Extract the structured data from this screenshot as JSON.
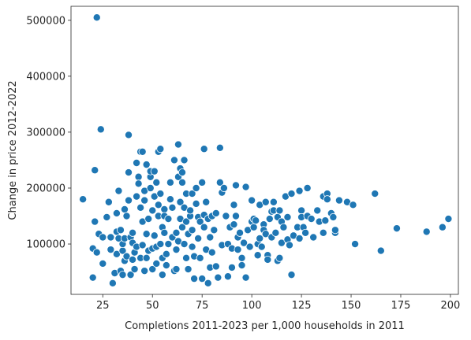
{
  "chart_data": {
    "type": "scatter",
    "title": "",
    "xlabel": "Completions 2011-2023 per 1,000 households in 2011",
    "ylabel": "Change in price 2012-2022",
    "xlim": [
      9,
      204
    ],
    "ylim": [
      10000,
      525000
    ],
    "x_ticks": [
      25,
      50,
      75,
      100,
      125,
      150,
      175,
      200
    ],
    "y_ticks": [
      100000,
      200000,
      300000,
      400000,
      500000
    ],
    "x_tick_labels": [
      "25",
      "50",
      "75",
      "100",
      "125",
      "150",
      "175",
      "200"
    ],
    "y_tick_labels": [
      "100000",
      "200000",
      "300000",
      "400000",
      "500000"
    ],
    "grid": false,
    "legend": "none",
    "color": "#1f77b4",
    "points": [
      [
        15,
        180000
      ],
      [
        20,
        92000
      ],
      [
        20,
        40000
      ],
      [
        21,
        140000
      ],
      [
        21,
        232000
      ],
      [
        22,
        505000
      ],
      [
        22,
        85000
      ],
      [
        23,
        118000
      ],
      [
        24,
        305000
      ],
      [
        25,
        65000
      ],
      [
        25,
        112000
      ],
      [
        27,
        148000
      ],
      [
        28,
        175000
      ],
      [
        29,
        112000
      ],
      [
        29,
        90000
      ],
      [
        30,
        30000
      ],
      [
        31,
        48000
      ],
      [
        32,
        122000
      ],
      [
        32,
        155000
      ],
      [
        32,
        82000
      ],
      [
        33,
        195000
      ],
      [
        33,
        110000
      ],
      [
        34,
        52000
      ],
      [
        34,
        125000
      ],
      [
        35,
        45000
      ],
      [
        35,
        88000
      ],
      [
        35,
        100000
      ],
      [
        36,
        70000
      ],
      [
        36,
        162000
      ],
      [
        36,
        110000
      ],
      [
        37,
        150000
      ],
      [
        37,
        78000
      ],
      [
        38,
        228000
      ],
      [
        38,
        295000
      ],
      [
        38,
        178000
      ],
      [
        39,
        45000
      ],
      [
        39,
        112000
      ],
      [
        40,
        72000
      ],
      [
        40,
        102000
      ],
      [
        40,
        120000
      ],
      [
        41,
        85000
      ],
      [
        41,
        55000
      ],
      [
        42,
        245000
      ],
      [
        42,
        185000
      ],
      [
        42,
        95000
      ],
      [
        43,
        220000
      ],
      [
        43,
        208000
      ],
      [
        44,
        265000
      ],
      [
        44,
        165000
      ],
      [
        44,
        75000
      ],
      [
        45,
        140000
      ],
      [
        45,
        265000
      ],
      [
        45,
        98000
      ],
      [
        46,
        52000
      ],
      [
        46,
        195000
      ],
      [
        46,
        178000
      ],
      [
        47,
        118000
      ],
      [
        47,
        242000
      ],
      [
        47,
        75000
      ],
      [
        48,
        145000
      ],
      [
        48,
        88000
      ],
      [
        49,
        220000
      ],
      [
        49,
        200000
      ],
      [
        49,
        230000
      ],
      [
        50,
        92000
      ],
      [
        50,
        160000
      ],
      [
        50,
        55000
      ],
      [
        51,
        230000
      ],
      [
        51,
        185000
      ],
      [
        51,
        115000
      ],
      [
        52,
        210000
      ],
      [
        52,
        95000
      ],
      [
        52,
        65000
      ],
      [
        53,
        170000
      ],
      [
        53,
        265000
      ],
      [
        53,
        150000
      ],
      [
        54,
        190000
      ],
      [
        54,
        270000
      ],
      [
        54,
        100000
      ],
      [
        55,
        45000
      ],
      [
        55,
        75000
      ],
      [
        55,
        130000
      ],
      [
        56,
        162000
      ],
      [
        56,
        150000
      ],
      [
        56,
        120000
      ],
      [
        57,
        62000
      ],
      [
        57,
        82000
      ],
      [
        58,
        100000
      ],
      [
        58,
        145000
      ],
      [
        59,
        210000
      ],
      [
        59,
        180000
      ],
      [
        60,
        112000
      ],
      [
        60,
        165000
      ],
      [
        61,
        52000
      ],
      [
        61,
        250000
      ],
      [
        62,
        90000
      ],
      [
        62,
        120000
      ],
      [
        62,
        55000
      ],
      [
        63,
        278000
      ],
      [
        63,
        220000
      ],
      [
        63,
        105000
      ],
      [
        64,
        235000
      ],
      [
        64,
        175000
      ],
      [
        64,
        145000
      ],
      [
        65,
        228000
      ],
      [
        65,
        130000
      ],
      [
        65,
        210000
      ],
      [
        66,
        165000
      ],
      [
        66,
        250000
      ],
      [
        66,
        100000
      ],
      [
        67,
        75000
      ],
      [
        67,
        140000
      ],
      [
        67,
        190000
      ],
      [
        68,
        118000
      ],
      [
        68,
        55000
      ],
      [
        69,
        150000
      ],
      [
        69,
        160000
      ],
      [
        70,
        190000
      ],
      [
        70,
        95000
      ],
      [
        70,
        125000
      ],
      [
        71,
        78000
      ],
      [
        71,
        38000
      ],
      [
        72,
        200000
      ],
      [
        72,
        172000
      ],
      [
        73,
        148000
      ],
      [
        73,
        110000
      ],
      [
        74,
        75000
      ],
      [
        74,
        140000
      ],
      [
        75,
        38000
      ],
      [
        75,
        210000
      ],
      [
        76,
        152000
      ],
      [
        76,
        130000
      ],
      [
        76,
        270000
      ],
      [
        77,
        90000
      ],
      [
        77,
        175000
      ],
      [
        78,
        145000
      ],
      [
        78,
        30000
      ],
      [
        79,
        112000
      ],
      [
        79,
        58000
      ],
      [
        80,
        150000
      ],
      [
        80,
        85000
      ],
      [
        81,
        125000
      ],
      [
        82,
        155000
      ],
      [
        82,
        60000
      ],
      [
        83,
        40000
      ],
      [
        84,
        210000
      ],
      [
        84,
        272000
      ],
      [
        85,
        192000
      ],
      [
        85,
        98000
      ],
      [
        86,
        200000
      ],
      [
        87,
        150000
      ],
      [
        88,
        42000
      ],
      [
        88,
        100000
      ],
      [
        89,
        130000
      ],
      [
        90,
        58000
      ],
      [
        90,
        92000
      ],
      [
        91,
        170000
      ],
      [
        91,
        135000
      ],
      [
        92,
        150000
      ],
      [
        92,
        205000
      ],
      [
        93,
        112000
      ],
      [
        93,
        90000
      ],
      [
        94,
        120000
      ],
      [
        95,
        75000
      ],
      [
        95,
        62000
      ],
      [
        96,
        102000
      ],
      [
        97,
        40000
      ],
      [
        97,
        202000
      ],
      [
        98,
        125000
      ],
      [
        99,
        95000
      ],
      [
        100,
        140000
      ],
      [
        100,
        178000
      ],
      [
        101,
        145000
      ],
      [
        101,
        130000
      ],
      [
        102,
        142000
      ],
      [
        103,
        80000
      ],
      [
        103,
        100000
      ],
      [
        104,
        110000
      ],
      [
        104,
        170000
      ],
      [
        105,
        95000
      ],
      [
        106,
        135000
      ],
      [
        106,
        125000
      ],
      [
        107,
        175000
      ],
      [
        107,
        118000
      ],
      [
        108,
        80000
      ],
      [
        108,
        72000
      ],
      [
        109,
        145000
      ],
      [
        110,
        112000
      ],
      [
        110,
        158000
      ],
      [
        111,
        160000
      ],
      [
        111,
        175000
      ],
      [
        112,
        120000
      ],
      [
        113,
        70000
      ],
      [
        113,
        148000
      ],
      [
        114,
        160000
      ],
      [
        114,
        75000
      ],
      [
        115,
        102000
      ],
      [
        115,
        140000
      ],
      [
        116,
        130000
      ],
      [
        117,
        185000
      ],
      [
        118,
        148000
      ],
      [
        118,
        108000
      ],
      [
        119,
        98000
      ],
      [
        120,
        45000
      ],
      [
        120,
        190000
      ],
      [
        121,
        115000
      ],
      [
        123,
        130000
      ],
      [
        124,
        110000
      ],
      [
        124,
        195000
      ],
      [
        125,
        160000
      ],
      [
        125,
        148000
      ],
      [
        126,
        130000
      ],
      [
        127,
        120000
      ],
      [
        128,
        150000
      ],
      [
        128,
        200000
      ],
      [
        130,
        145000
      ],
      [
        131,
        112000
      ],
      [
        133,
        160000
      ],
      [
        134,
        140000
      ],
      [
        136,
        185000
      ],
      [
        136,
        120000
      ],
      [
        137,
        142000
      ],
      [
        138,
        190000
      ],
      [
        138,
        180000
      ],
      [
        140,
        155000
      ],
      [
        141,
        148000
      ],
      [
        142,
        120000
      ],
      [
        142,
        125000
      ],
      [
        144,
        178000
      ],
      [
        148,
        175000
      ],
      [
        151,
        170000
      ],
      [
        152,
        100000
      ],
      [
        162,
        190000
      ],
      [
        165,
        88000
      ],
      [
        173,
        128000
      ],
      [
        188,
        122000
      ],
      [
        196,
        130000
      ],
      [
        199,
        145000
      ]
    ]
  }
}
